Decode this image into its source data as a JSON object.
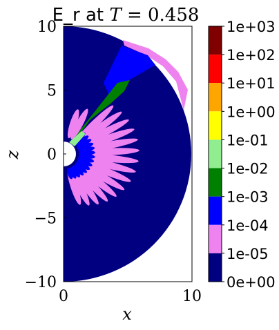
{
  "chart_data": {
    "type": "heatmap",
    "title_prefix": "E_r at ",
    "title_math_var": "T",
    "title_math_eq": " = 0.458",
    "xlabel": "x",
    "ylabel": "z",
    "xlim": [
      0,
      10
    ],
    "ylim": [
      -10,
      10
    ],
    "x_ticks": [
      {
        "value": 0,
        "label": "0"
      },
      {
        "value": 10,
        "label": "10"
      }
    ],
    "y_ticks": [
      {
        "value": 10,
        "label": "10"
      },
      {
        "value": 5,
        "label": "5"
      },
      {
        "value": 0,
        "label": "0"
      },
      {
        "value": -5,
        "label": "−5"
      },
      {
        "value": -10,
        "label": "−10"
      }
    ],
    "domain": {
      "inner_radius": 1,
      "outer_radius": 10
    },
    "colorbar": {
      "levels": [
        "1e+03",
        "1e+02",
        "1e+01",
        "1e+00",
        "1e-01",
        "1e-02",
        "1e-03",
        "1e-04",
        "1e-05",
        "0e+00"
      ],
      "colors": [
        "#800000",
        "#ff0000",
        "#ffa500",
        "#ffff00",
        "#90ee90",
        "#008000",
        "#0000ff",
        "#ee82ee",
        "#000080"
      ]
    }
  }
}
